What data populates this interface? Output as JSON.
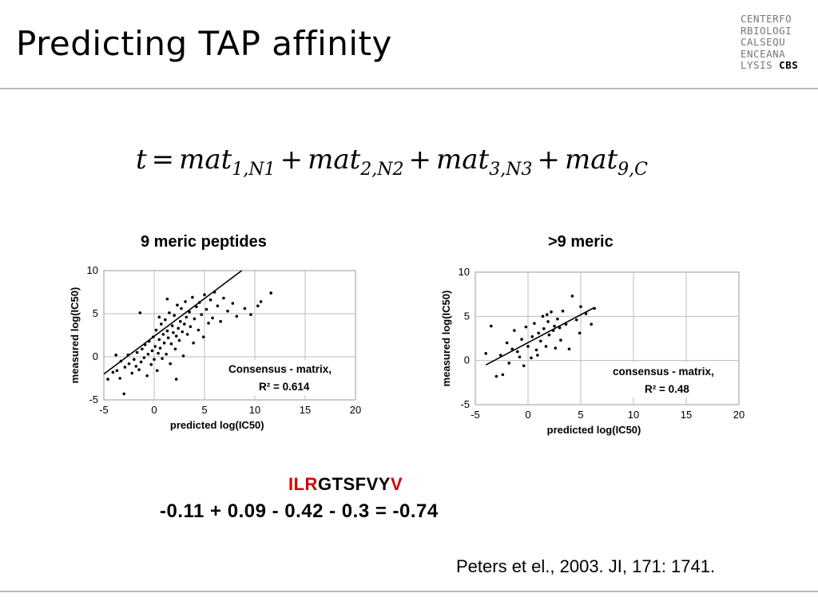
{
  "slide": {
    "title": "Predicting TAP affinity",
    "logo_lines": [
      "CENTERFO",
      "RBIOLOGI",
      "CALSEQU",
      "ENCEANA",
      "LYSIS"
    ],
    "logo_badge": "CBS",
    "formula": {
      "lhs": "t",
      "terms": [
        {
          "name": "mat",
          "sub": "1,N1"
        },
        {
          "name": "mat",
          "sub": "2,N2"
        },
        {
          "name": "mat",
          "sub": "3,N3"
        },
        {
          "name": "mat",
          "sub": "9,C"
        }
      ]
    },
    "sequence": {
      "prefix_red": "ILR",
      "middle": "GTSFVY",
      "suffix_red": "V"
    },
    "calculation": "-0.11 + 0.09 - 0.42 - 0.3 = -0.74",
    "reference": "Peters et el., 2003. JI, 171: 1741."
  },
  "chart_data": [
    {
      "type": "scatter",
      "title": "9 meric peptides",
      "xlabel": "predicted log(IC50)",
      "ylabel": "measured log(IC50)",
      "xlim": [
        -5,
        20
      ],
      "ylim": [
        -5,
        10
      ],
      "xticks": [
        -5,
        0,
        5,
        10,
        15,
        20
      ],
      "yticks": [
        -5,
        0,
        5,
        10
      ],
      "grid": true,
      "annotation": [
        "Consensus - matrix,",
        "R² = 0.614"
      ],
      "fit_line": [
        [
          -5,
          -2
        ],
        [
          8.7,
          10
        ]
      ],
      "points": [
        [
          -4.6,
          -2.6
        ],
        [
          -4.1,
          -1.8
        ],
        [
          -3.7,
          -1.6
        ],
        [
          -3.4,
          -2.5
        ],
        [
          -3.0,
          -4.3
        ],
        [
          -3.3,
          -0.5
        ],
        [
          -2.9,
          -1.2
        ],
        [
          -2.6,
          0.2
        ],
        [
          -2.5,
          -0.8
        ],
        [
          -2.2,
          -1.9
        ],
        [
          -2.0,
          -0.3
        ],
        [
          -1.8,
          -1.1
        ],
        [
          -1.7,
          0.5
        ],
        [
          -1.5,
          -1.5
        ],
        [
          -1.3,
          -0.6
        ],
        [
          -1.2,
          0.9
        ],
        [
          -1.0,
          -0.1
        ],
        [
          -0.9,
          1.4
        ],
        [
          -0.7,
          -2.2
        ],
        [
          -0.6,
          0.3
        ],
        [
          -0.5,
          1.8
        ],
        [
          -0.3,
          -0.9
        ],
        [
          -0.2,
          0.7
        ],
        [
          -0.1,
          2.3
        ],
        [
          0.0,
          -0.3
        ],
        [
          0.1,
          1.2
        ],
        [
          0.2,
          3.1
        ],
        [
          0.3,
          -1.6
        ],
        [
          0.4,
          0.4
        ],
        [
          0.5,
          2.0
        ],
        [
          0.6,
          1.0
        ],
        [
          0.7,
          3.8
        ],
        [
          0.8,
          -0.2
        ],
        [
          0.9,
          2.6
        ],
        [
          1.0,
          1.6
        ],
        [
          1.1,
          4.3
        ],
        [
          1.2,
          0.3
        ],
        [
          1.3,
          3.0
        ],
        [
          1.4,
          2.2
        ],
        [
          1.5,
          5.1
        ],
        [
          1.6,
          -0.8
        ],
        [
          1.7,
          1.5
        ],
        [
          1.8,
          3.6
        ],
        [
          1.9,
          2.8
        ],
        [
          2.0,
          4.8
        ],
        [
          2.1,
          0.9
        ],
        [
          2.2,
          2.4
        ],
        [
          2.3,
          6.0
        ],
        [
          2.4,
          3.3
        ],
        [
          2.5,
          1.9
        ],
        [
          2.6,
          4.1
        ],
        [
          2.7,
          5.6
        ],
        [
          2.8,
          2.9
        ],
        [
          2.9,
          0.1
        ],
        [
          3.0,
          3.8
        ],
        [
          3.1,
          6.4
        ],
        [
          3.2,
          4.6
        ],
        [
          3.3,
          2.6
        ],
        [
          3.5,
          5.2
        ],
        [
          3.6,
          3.5
        ],
        [
          3.8,
          6.9
        ],
        [
          3.9,
          1.6
        ],
        [
          4.0,
          4.4
        ],
        [
          4.2,
          5.8
        ],
        [
          4.4,
          3.1
        ],
        [
          4.5,
          6.3
        ],
        [
          4.7,
          4.9
        ],
        [
          4.9,
          2.3
        ],
        [
          5.0,
          7.2
        ],
        [
          5.2,
          5.5
        ],
        [
          5.4,
          3.9
        ],
        [
          5.6,
          6.6
        ],
        [
          5.8,
          4.5
        ],
        [
          6.0,
          7.5
        ],
        [
          6.3,
          5.9
        ],
        [
          6.6,
          4.1
        ],
        [
          6.9,
          6.8
        ],
        [
          7.3,
          5.3
        ],
        [
          7.8,
          6.2
        ],
        [
          8.2,
          4.7
        ],
        [
          9.0,
          5.6
        ],
        [
          9.6,
          4.9
        ],
        [
          10.3,
          5.9
        ],
        [
          10.6,
          6.4
        ],
        [
          11.6,
          7.4
        ],
        [
          -1.4,
          5.1
        ],
        [
          0.5,
          4.6
        ],
        [
          2.2,
          -2.6
        ],
        [
          -3.8,
          0.2
        ],
        [
          1.3,
          6.7
        ]
      ]
    },
    {
      "type": "scatter",
      "title": ">9 meric",
      "xlabel": "predicted log(IC50)",
      "ylabel": "measured log(IC50)",
      "xlim": [
        -5,
        20
      ],
      "ylim": [
        -5,
        10
      ],
      "xticks": [
        -5,
        0,
        5,
        10,
        15,
        20
      ],
      "yticks": [
        -5,
        0,
        5,
        10
      ],
      "grid": true,
      "annotation": [
        "consensus - matrix,",
        "R² = 0.48"
      ],
      "fit_line": [
        [
          -4,
          -0.5
        ],
        [
          6.3,
          6.0
        ]
      ],
      "points": [
        [
          -4.0,
          0.8
        ],
        [
          -3.0,
          -1.8
        ],
        [
          -2.6,
          0.6
        ],
        [
          -2.4,
          -1.6
        ],
        [
          -2.0,
          2.0
        ],
        [
          -1.8,
          -0.3
        ],
        [
          -1.3,
          3.4
        ],
        [
          -1.0,
          1.0
        ],
        [
          -0.6,
          2.4
        ],
        [
          -0.4,
          -0.6
        ],
        [
          -0.2,
          3.8
        ],
        [
          0.0,
          1.6
        ],
        [
          0.3,
          0.3
        ],
        [
          0.4,
          2.7
        ],
        [
          0.6,
          4.2
        ],
        [
          0.8,
          1.2
        ],
        [
          1.0,
          3.1
        ],
        [
          1.2,
          2.2
        ],
        [
          1.4,
          5.0
        ],
        [
          1.5,
          3.6
        ],
        [
          1.7,
          1.6
        ],
        [
          1.9,
          4.4
        ],
        [
          2.0,
          2.9
        ],
        [
          2.2,
          5.5
        ],
        [
          2.4,
          3.4
        ],
        [
          2.6,
          1.4
        ],
        [
          2.8,
          4.7
        ],
        [
          3.0,
          3.7
        ],
        [
          3.1,
          2.3
        ],
        [
          3.3,
          5.6
        ],
        [
          3.6,
          4.1
        ],
        [
          3.9,
          1.3
        ],
        [
          4.2,
          7.3
        ],
        [
          4.6,
          4.6
        ],
        [
          5.0,
          6.1
        ],
        [
          5.5,
          5.3
        ],
        [
          6.0,
          4.1
        ],
        [
          6.3,
          5.9
        ],
        [
          -3.5,
          3.9
        ],
        [
          -1.5,
          1.3
        ],
        [
          0.9,
          0.6
        ],
        [
          2.5,
          3.9
        ],
        [
          4.9,
          3.1
        ],
        [
          -0.8,
          0.4
        ],
        [
          1.8,
          5.2
        ]
      ]
    }
  ]
}
